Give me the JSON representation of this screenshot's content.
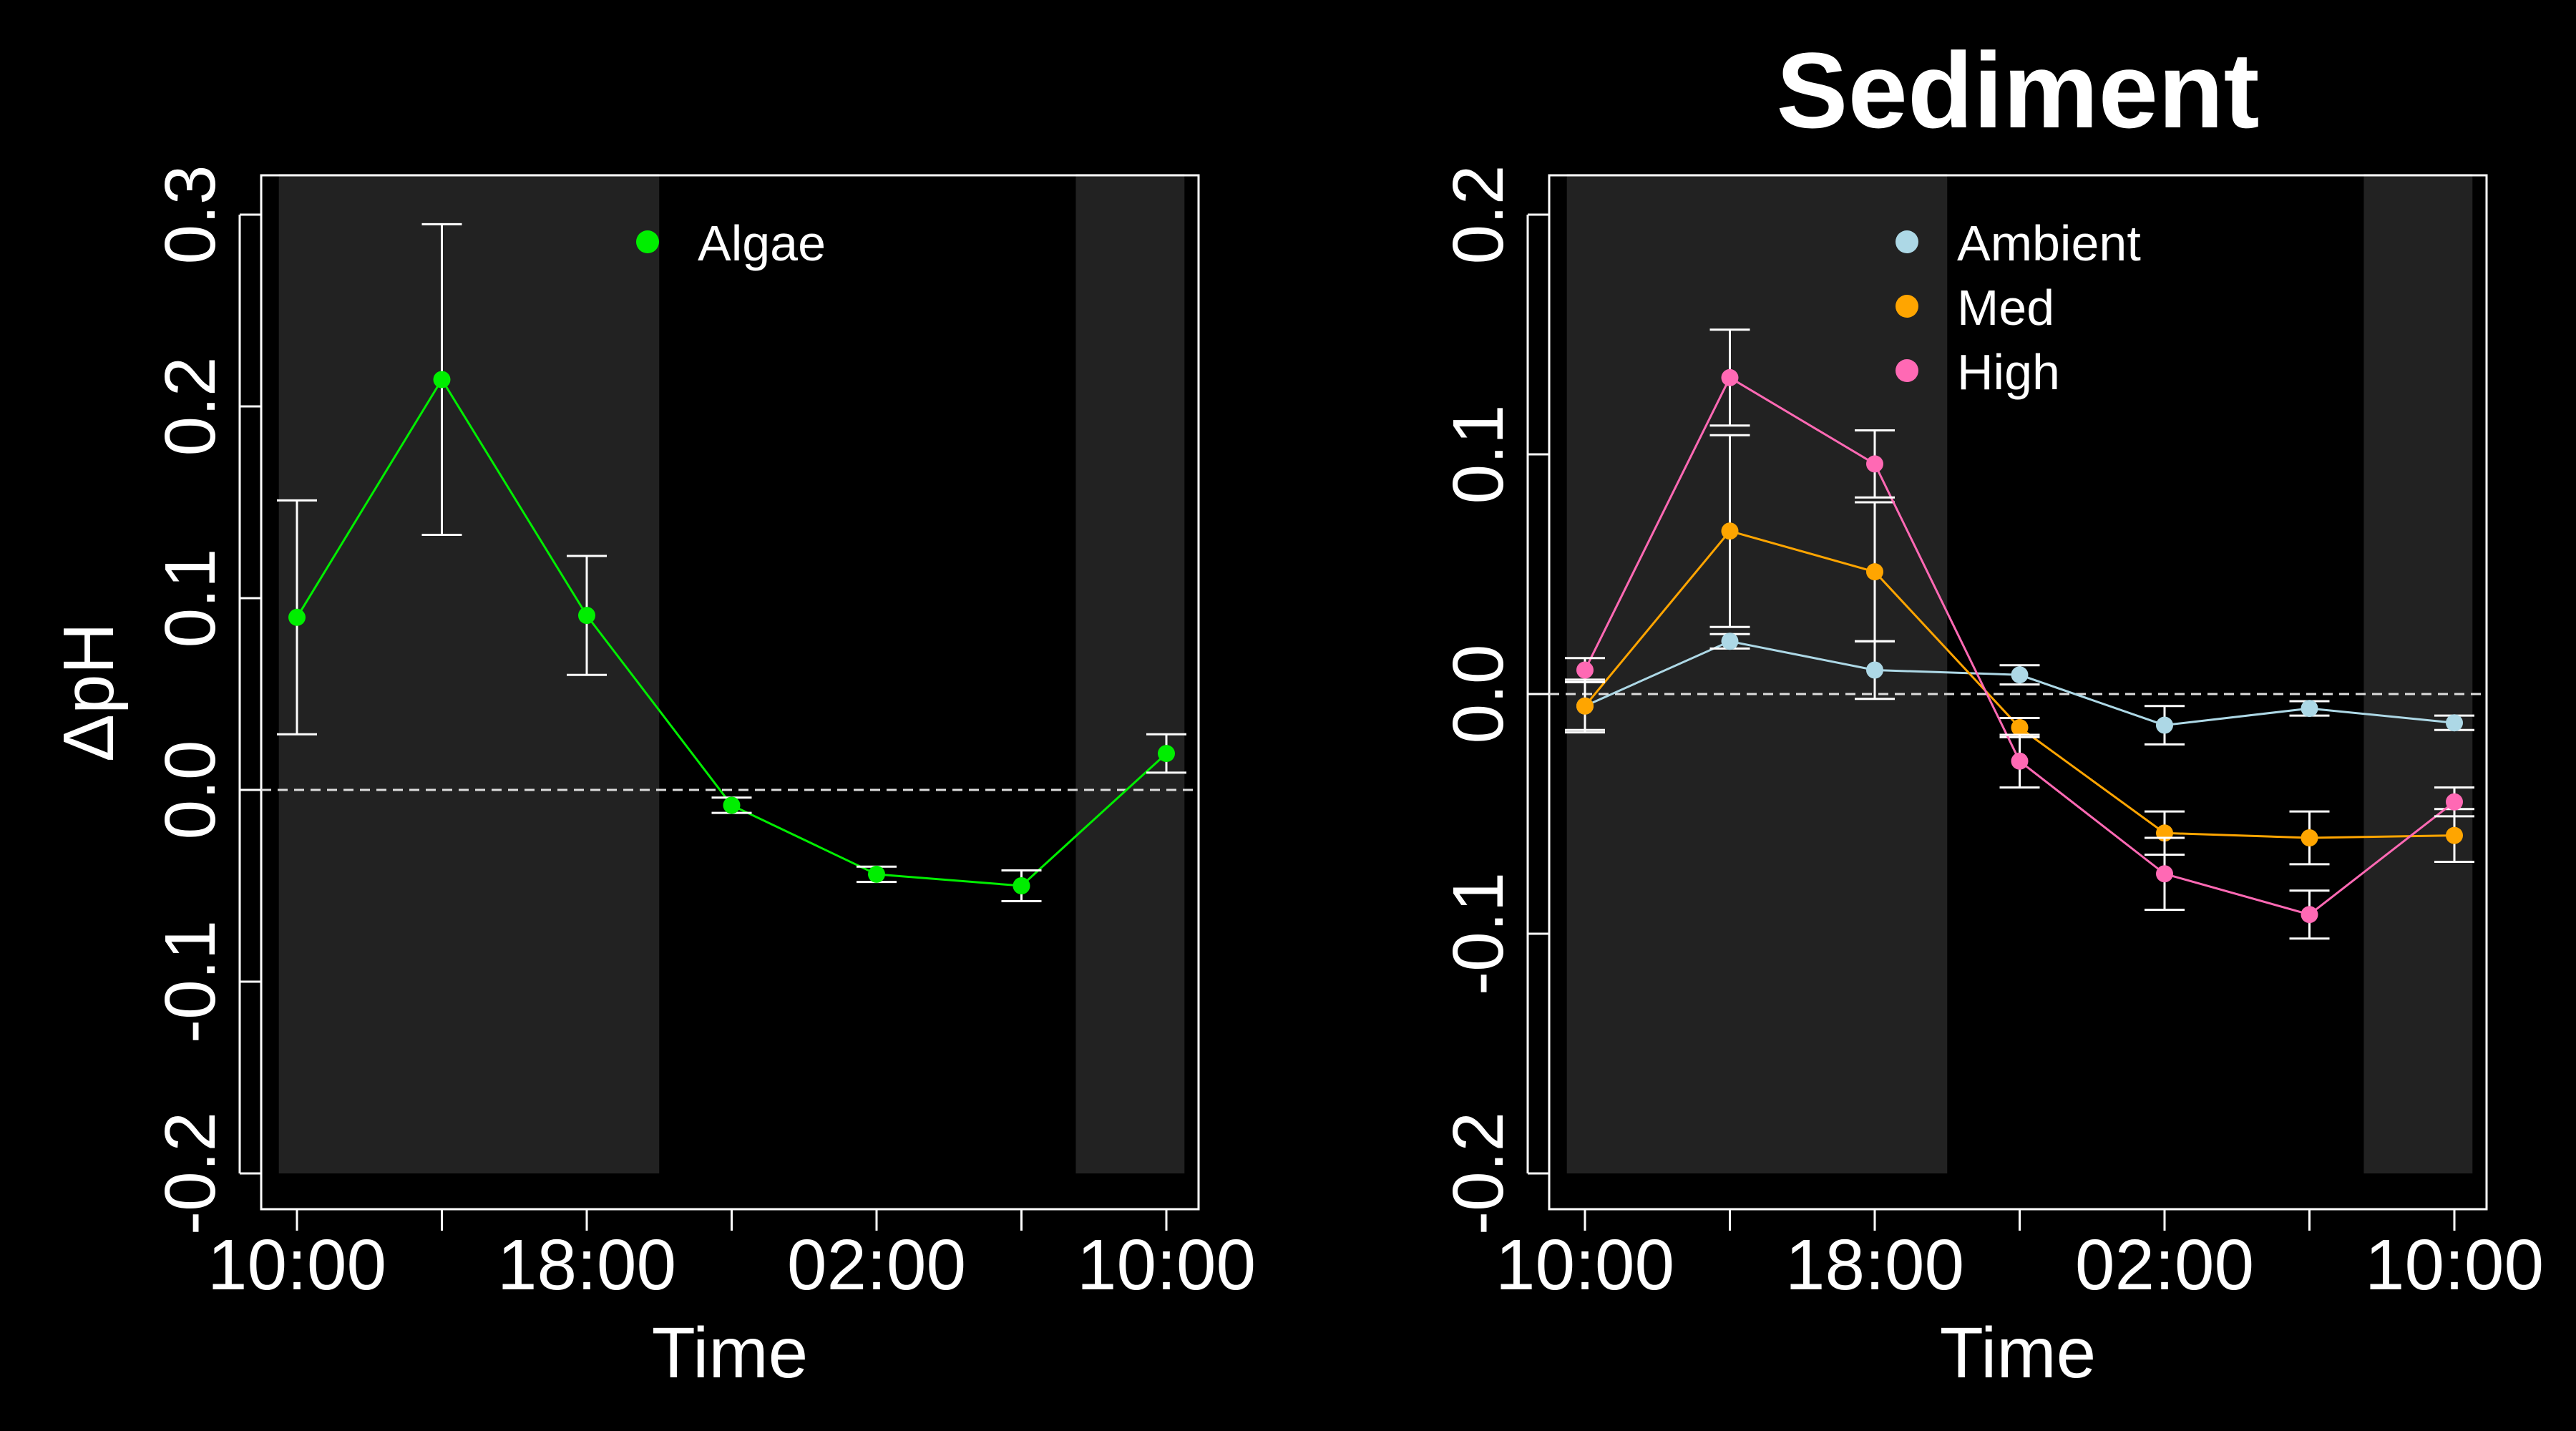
{
  "colors": {
    "background": "#000000",
    "day_shade": "#222222",
    "foreground": "#ffffff",
    "zero_line": "#dddddd"
  },
  "chart_data": [
    {
      "type": "line",
      "title": "",
      "xlabel": "Time",
      "ylabel": "ΔpH",
      "ylim": [
        -0.2,
        0.3
      ],
      "y_ticks": [
        -0.2,
        -0.1,
        0.0,
        0.1,
        0.2,
        0.3
      ],
      "y_tick_labels": [
        "-0.2",
        "-0.1",
        "0.0",
        "0.1",
        "0.2",
        "0.3"
      ],
      "x": [
        "10:00",
        "14:00",
        "18:00",
        "22:00",
        "02:00",
        "06:00",
        "10:00"
      ],
      "x_tick_labels": [
        "10:00",
        "",
        "18:00",
        "",
        "02:00",
        "",
        "10:00"
      ],
      "day_shading": [
        [
          "09:30",
          "20:00"
        ],
        [
          "07:30",
          "10:30"
        ]
      ],
      "zero_line": true,
      "legend": "top-center",
      "series": [
        {
          "name": "Algae",
          "color": "#00ee00",
          "values": [
            0.09,
            0.214,
            0.091,
            -0.008,
            -0.044,
            -0.05,
            0.019
          ],
          "error": [
            0.061,
            0.081,
            0.031,
            0.004,
            0.004,
            0.008,
            0.01
          ]
        }
      ]
    },
    {
      "type": "line",
      "title": "Sediment",
      "xlabel": "Time",
      "ylabel": "",
      "ylim": [
        -0.2,
        0.2
      ],
      "y_ticks": [
        -0.2,
        -0.1,
        0.0,
        0.1,
        0.2
      ],
      "y_tick_labels": [
        "-0.2",
        "-0.1",
        "0.0",
        "0.1",
        "0.2"
      ],
      "x": [
        "10:00",
        "14:00",
        "18:00",
        "22:00",
        "02:00",
        "06:00",
        "10:00"
      ],
      "x_tick_labels": [
        "10:00",
        "",
        "18:00",
        "",
        "02:00",
        "",
        "10:00"
      ],
      "day_shading": [
        [
          "09:30",
          "20:00"
        ],
        [
          "07:30",
          "10:30"
        ]
      ],
      "zero_line": true,
      "legend": "top-center",
      "series": [
        {
          "name": "Ambient",
          "color": "#add8e6",
          "values": [
            -0.005,
            0.022,
            0.01,
            0.008,
            -0.013,
            -0.006,
            -0.012
          ],
          "error": [
            0.01,
            0.003,
            0.012,
            0.004,
            0.008,
            0.003,
            0.003
          ]
        },
        {
          "name": "Med",
          "color": "#ffa500",
          "values": [
            -0.005,
            0.068,
            0.051,
            -0.014,
            -0.058,
            -0.06,
            -0.059
          ],
          "error": [
            0.011,
            0.04,
            0.029,
            0.004,
            0.009,
            0.011,
            0.011
          ]
        },
        {
          "name": "High",
          "color": "#ff69b4",
          "values": [
            0.01,
            0.132,
            0.096,
            -0.028,
            -0.075,
            -0.092,
            -0.045
          ],
          "error": [
            0.005,
            0.02,
            0.014,
            0.011,
            0.015,
            0.01,
            0.006
          ]
        }
      ]
    }
  ]
}
